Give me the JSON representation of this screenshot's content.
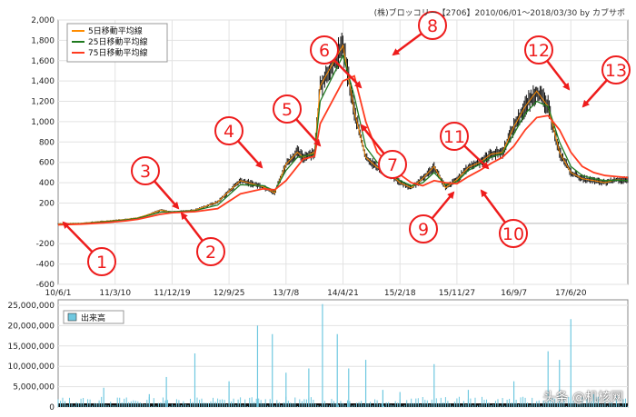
{
  "caption": "(株)ブロッコリー【2706】2010/06/01～2018/03/30 by カブサポ",
  "watermark": "头条 @机核网",
  "colors": {
    "price": "#111111",
    "ma5": "#ff8c00",
    "ma25": "#1f7a1f",
    "ma75": "#ff3b1f",
    "volume": "#6fc8e0",
    "arrow": "#ee1c1c",
    "circle_text": "#ee1c1c"
  },
  "chart_data": [
    {
      "type": "line",
      "title": "",
      "x_ticks": [
        "10/6/1",
        "11/3/10",
        "11/12/19",
        "12/9/25",
        "13/7/8",
        "14/4/21",
        "15/2/18",
        "15/11/27",
        "16/9/7",
        "17/6/20"
      ],
      "ylim": [
        -600,
        2000
      ],
      "y_ticks": [
        "2,000",
        "1,800",
        "1,600",
        "1,400",
        "1,200",
        "1,000",
        "800",
        "600",
        "400",
        "200",
        "",
        "-200",
        "-400",
        "-600"
      ],
      "grid": true,
      "legend": {
        "placement": "top-left",
        "items": [
          "5日移動平均線",
          "25日移動平均線",
          "75日移動平均線"
        ]
      },
      "x_index": [
        0,
        20,
        40,
        60,
        70,
        80,
        90,
        100,
        120,
        140,
        160,
        180,
        190,
        200,
        210,
        215,
        225,
        230,
        250,
        260,
        270,
        280,
        290,
        300,
        310,
        320,
        330,
        340,
        350,
        360,
        370,
        380,
        390,
        400,
        410,
        420,
        430,
        440,
        450,
        460,
        470,
        480,
        490,
        500
      ],
      "series": [
        {
          "name": "5日移動平均線",
          "values": [
            -5,
            0,
            20,
            40,
            55,
            90,
            130,
            110,
            130,
            210,
            420,
            360,
            300,
            580,
            700,
            650,
            700,
            1350,
            1750,
            1100,
            650,
            550,
            500,
            400,
            350,
            440,
            560,
            350,
            430,
            550,
            600,
            680,
            700,
            950,
            1150,
            1300,
            1150,
            700,
            500,
            440,
            420,
            400,
            430,
            420
          ]
        },
        {
          "name": "25日移動平均線",
          "values": [
            -10,
            -2,
            15,
            35,
            50,
            80,
            110,
            115,
            125,
            180,
            380,
            370,
            320,
            520,
            650,
            660,
            680,
            1200,
            1650,
            1250,
            750,
            600,
            520,
            420,
            370,
            400,
            500,
            380,
            410,
            520,
            580,
            650,
            690,
            880,
            1080,
            1200,
            1150,
            800,
            560,
            470,
            440,
            420,
            425,
            420
          ]
        },
        {
          "name": "75日移動平均線",
          "values": [
            -15,
            -8,
            5,
            25,
            40,
            65,
            90,
            105,
            115,
            145,
            290,
            340,
            330,
            420,
            560,
            630,
            660,
            980,
            1400,
            1450,
            1000,
            700,
            590,
            480,
            400,
            370,
            420,
            400,
            390,
            460,
            520,
            590,
            650,
            760,
            920,
            1040,
            1060,
            920,
            700,
            560,
            500,
            470,
            460,
            450
          ]
        }
      ],
      "annotations": [
        "1",
        "2",
        "3",
        "4",
        "5",
        "6",
        "7",
        "8",
        "9",
        "10",
        "11",
        "12",
        "13"
      ]
    },
    {
      "type": "bar",
      "title": "",
      "ylim": [
        0,
        25000000
      ],
      "y_ticks": [
        "25,000,000",
        "20,000,000",
        "15,000,000",
        "10,000,000",
        "5,000,000",
        "0"
      ],
      "legend": {
        "placement": "top-left",
        "items": [
          "出来高"
        ]
      },
      "series": [
        {
          "name": "出来高",
          "spikes": [
            [
              40,
              4500000
            ],
            [
              80,
              3000000
            ],
            [
              95,
              7000000
            ],
            [
              120,
              12500000
            ],
            [
              150,
              6000000
            ],
            [
              175,
              19000000
            ],
            [
              188,
              17000000
            ],
            [
              200,
              8000000
            ],
            [
              220,
              9000000
            ],
            [
              232,
              24000000
            ],
            [
              245,
              17000000
            ],
            [
              255,
              9000000
            ],
            [
              270,
              11000000
            ],
            [
              285,
              4000000
            ],
            [
              300,
              3500000
            ],
            [
              330,
              10000000
            ],
            [
              360,
              4000000
            ],
            [
              400,
              6000000
            ],
            [
              430,
              13000000
            ],
            [
              440,
              11000000
            ],
            [
              450,
              20500000
            ],
            [
              470,
              3000000
            ],
            [
              490,
              2500000
            ]
          ]
        }
      ]
    }
  ]
}
